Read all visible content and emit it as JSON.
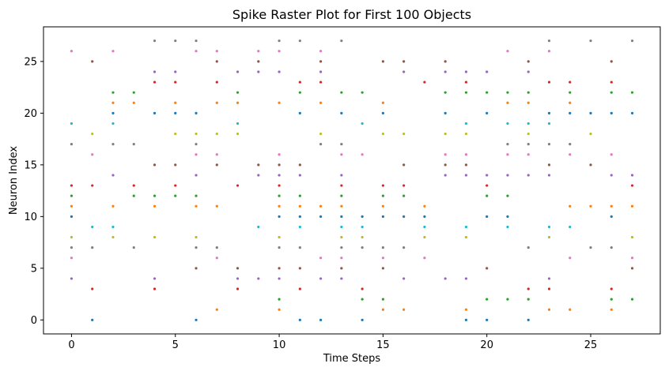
{
  "chart_data": {
    "type": "scatter",
    "title": "Spike Raster Plot for First 100 Objects",
    "xlabel": "Time Steps",
    "ylabel": "Neuron Index",
    "xlim": [
      -1.35,
      28.35
    ],
    "ylim": [
      -1.35,
      28.35
    ],
    "xticks": [
      0,
      5,
      10,
      15,
      20,
      25
    ],
    "yticks": [
      0,
      5,
      10,
      15,
      20,
      25
    ],
    "grid": false,
    "legend": "none",
    "neuron_colors": [
      "#1f77b4",
      "#ff7f0e",
      "#2ca02c",
      "#d62728",
      "#9467bd",
      "#8c564b",
      "#e377c2",
      "#7f7f7f",
      "#bcbd22",
      "#17becf"
    ],
    "spikes": [
      {
        "t": 0,
        "neurons": [
          4,
          6,
          7,
          8,
          10,
          11,
          12,
          13,
          17,
          19,
          26
        ]
      },
      {
        "t": 1,
        "neurons": [
          0,
          3,
          7,
          9,
          13,
          16,
          18,
          25
        ]
      },
      {
        "t": 2,
        "neurons": [
          8,
          9,
          11,
          14,
          17,
          19,
          20,
          21,
          22,
          26
        ]
      },
      {
        "t": 3,
        "neurons": [
          7,
          12,
          13,
          17,
          21,
          22
        ]
      },
      {
        "t": 4,
        "neurons": [
          3,
          4,
          8,
          11,
          12,
          15,
          20,
          23,
          24,
          27
        ]
      },
      {
        "t": 5,
        "neurons": [
          12,
          13,
          15,
          18,
          20,
          21,
          23,
          24,
          27
        ]
      },
      {
        "t": 6,
        "neurons": [
          0,
          5,
          7,
          8,
          11,
          12,
          14,
          16,
          17,
          18,
          20,
          26,
          27
        ]
      },
      {
        "t": 7,
        "neurons": [
          1,
          6,
          7,
          11,
          15,
          16,
          18,
          21,
          23,
          25,
          26
        ]
      },
      {
        "t": 8,
        "neurons": [
          3,
          4,
          5,
          13,
          18,
          19,
          21,
          22,
          24
        ]
      },
      {
        "t": 9,
        "neurons": [
          4,
          9,
          14,
          15,
          24,
          25,
          26
        ]
      },
      {
        "t": 10,
        "neurons": [
          1,
          2,
          4,
          5,
          7,
          8,
          10,
          11,
          12,
          13,
          14,
          15,
          16,
          21,
          24,
          26,
          27
        ]
      },
      {
        "t": 11,
        "neurons": [
          0,
          3,
          5,
          7,
          9,
          10,
          11,
          12,
          14,
          15,
          20,
          22,
          23,
          27
        ]
      },
      {
        "t": 12,
        "neurons": [
          0,
          4,
          6,
          10,
          11,
          17,
          18,
          21,
          23,
          24,
          25,
          26
        ]
      },
      {
        "t": 13,
        "neurons": [
          4,
          5,
          6,
          7,
          8,
          9,
          10,
          11,
          12,
          13,
          14,
          16,
          17,
          20,
          22,
          27
        ]
      },
      {
        "t": 14,
        "neurons": [
          0,
          2,
          3,
          7,
          8,
          9,
          10,
          16,
          19,
          22
        ]
      },
      {
        "t": 15,
        "neurons": [
          1,
          2,
          5,
          6,
          7,
          10,
          11,
          12,
          13,
          18,
          20,
          21,
          25
        ]
      },
      {
        "t": 16,
        "neurons": [
          1,
          4,
          7,
          10,
          12,
          13,
          15,
          18,
          24,
          25
        ]
      },
      {
        "t": 17,
        "neurons": [
          6,
          8,
          9,
          10,
          11,
          23
        ]
      },
      {
        "t": 18,
        "neurons": [
          4,
          14,
          15,
          16,
          18,
          20,
          22,
          24,
          25
        ]
      },
      {
        "t": 19,
        "neurons": [
          0,
          1,
          4,
          8,
          9,
          14,
          15,
          16,
          18,
          19,
          22,
          23,
          24
        ]
      },
      {
        "t": 20,
        "neurons": [
          0,
          2,
          5,
          10,
          12,
          13,
          14,
          20,
          22,
          24
        ]
      },
      {
        "t": 21,
        "neurons": [
          2,
          9,
          10,
          12,
          14,
          16,
          17,
          19,
          21,
          22,
          26
        ]
      },
      {
        "t": 22,
        "neurons": [
          0,
          2,
          3,
          7,
          14,
          16,
          17,
          18,
          19,
          21,
          22,
          24,
          25
        ]
      },
      {
        "t": 23,
        "neurons": [
          1,
          3,
          4,
          8,
          9,
          14,
          15,
          17,
          19,
          20,
          23,
          26,
          27
        ]
      },
      {
        "t": 24,
        "neurons": [
          1,
          6,
          9,
          11,
          16,
          17,
          20,
          21,
          22,
          23
        ]
      },
      {
        "t": 25,
        "neurons": [
          7,
          11,
          15,
          18,
          20,
          27
        ]
      },
      {
        "t": 26,
        "neurons": [
          1,
          2,
          3,
          7,
          10,
          11,
          14,
          16,
          20,
          22,
          23,
          25
        ]
      },
      {
        "t": 27,
        "neurons": [
          2,
          5,
          6,
          8,
          11,
          13,
          14,
          20,
          22,
          27
        ]
      }
    ]
  }
}
